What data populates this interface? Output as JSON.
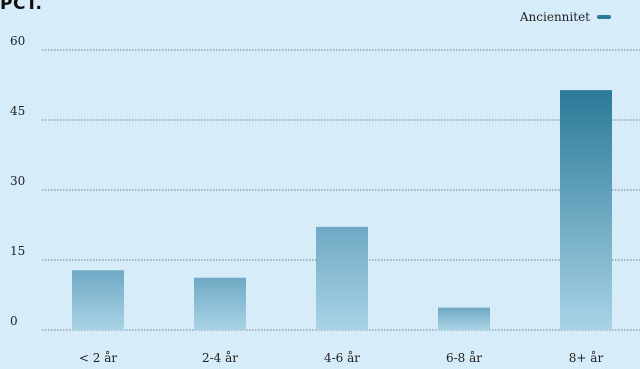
{
  "chart_data": {
    "type": "bar",
    "unit_label": "PCT.",
    "title": "",
    "xlabel": "",
    "ylabel": "",
    "categories": [
      "< 2 år",
      "2-4 år",
      "4-6 år",
      "6-8 år",
      "8+ år"
    ],
    "series": [
      {
        "name": "Anciennitet",
        "values": [
          12.8,
          11.2,
          22.1,
          4.8,
          51.4
        ]
      }
    ],
    "ylim": [
      0,
      60
    ],
    "yticks": [
      "0",
      "15",
      "30",
      "45",
      "60"
    ],
    "grid": true,
    "legend_position": "top-right",
    "colors": {
      "background": "#d6ecf8",
      "bar_top": "#6fa9c4",
      "bar_bottom": "#a9d3e6",
      "bar_tall_top": "#2a7a98",
      "legend_swatch": "#2a7a98",
      "grid": "#555555"
    }
  }
}
